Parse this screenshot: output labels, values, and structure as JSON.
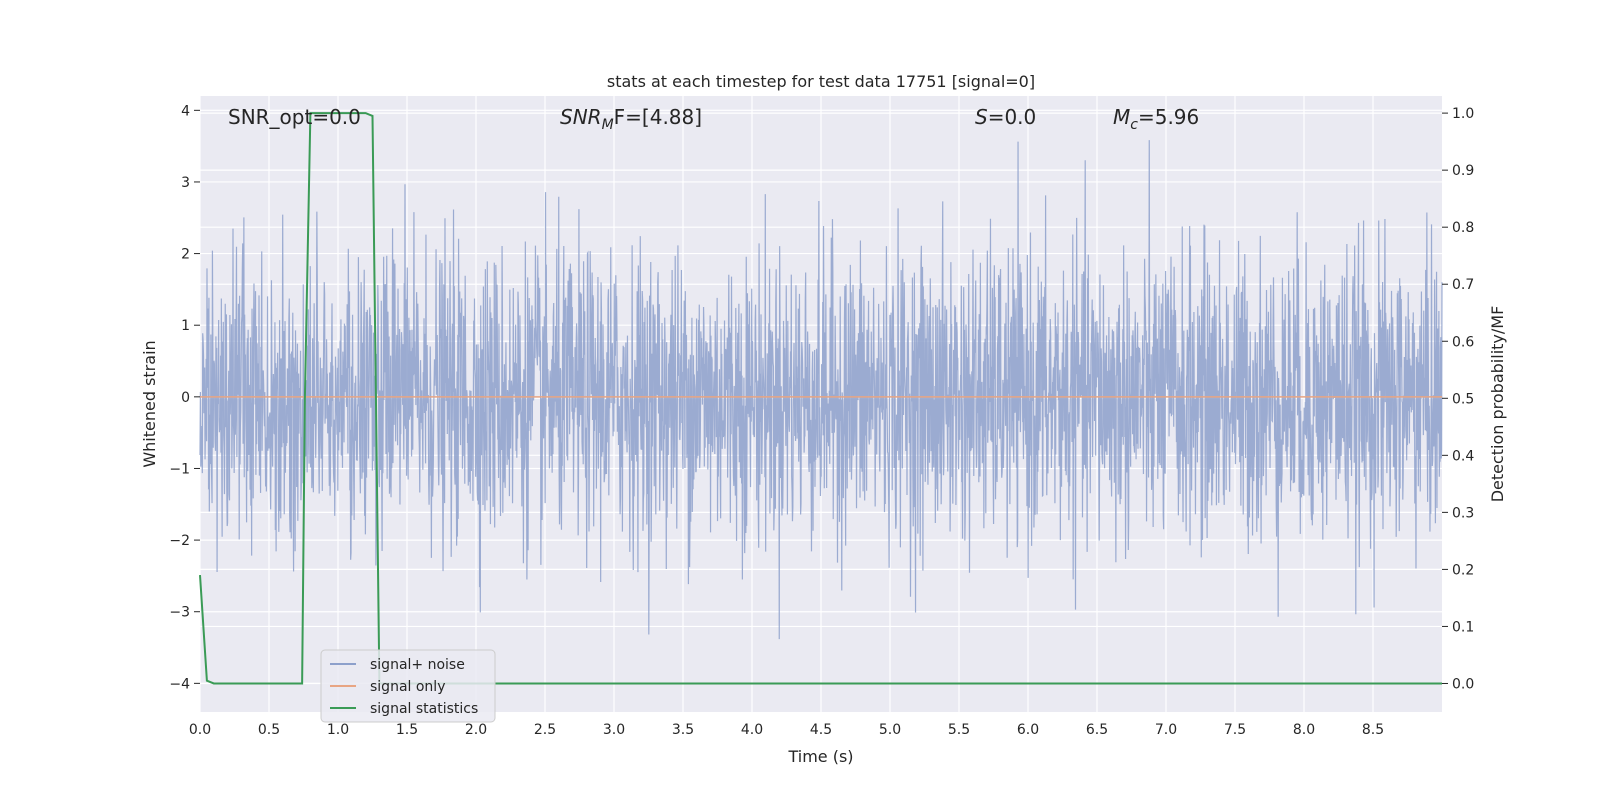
{
  "chart_data": {
    "type": "line",
    "title": "stats at each timestep for test data 17751 [signal=0]",
    "xlabel": "Time (s)",
    "ylabel_left": "Whitened strain",
    "ylabel_right": "Detection probability/MF",
    "xlim": [
      0,
      9
    ],
    "ylim_left": [
      -4.4,
      4.2
    ],
    "ylim_right": [
      -0.05,
      1.03
    ],
    "x_ticks": [
      "0.0",
      "0.5",
      "1.0",
      "1.5",
      "2.0",
      "2.5",
      "3.0",
      "3.5",
      "4.0",
      "4.5",
      "5.0",
      "5.5",
      "6.0",
      "6.5",
      "7.0",
      "7.5",
      "8.0",
      "8.5"
    ],
    "y_left_ticks": [
      "4",
      "3",
      "2",
      "1",
      "0",
      "−1",
      "−2",
      "−3",
      "−4"
    ],
    "y_right_ticks": [
      "1.0",
      "0.9",
      "0.8",
      "0.7",
      "0.6",
      "0.5",
      "0.4",
      "0.3",
      "0.2",
      "0.1",
      "0.0"
    ],
    "grid": true,
    "annotations": [
      {
        "name": "snr-opt-annotation",
        "base": "SNR_opt=0.0",
        "sub": "",
        "rest": "",
        "italic": false
      },
      {
        "name": "snr-mf-annotation",
        "base": "SNR",
        "sub": "M",
        "rest": "F=[4.88]",
        "italic": true
      },
      {
        "name": "s-annotation",
        "base": "S",
        "sub": "",
        "rest": "=0.0",
        "italic": true
      },
      {
        "name": "mc-annotation",
        "base": "M",
        "sub": "c",
        "rest": "=5.96",
        "italic": true
      }
    ],
    "legend": {
      "position": "lower-left",
      "entries": [
        "signal+ noise",
        "signal only",
        "signal statistics"
      ]
    },
    "series": [
      {
        "name": "signal+ noise",
        "axis": "left",
        "color": "#8da0cb",
        "style": "whitened noise time series, amplitude mostly within ±2, peaks reaching about ±3.7"
      },
      {
        "name": "signal only",
        "axis": "left",
        "color": "#e8a583",
        "values_constant": 0
      },
      {
        "name": "signal statistics",
        "axis": "right",
        "color": "#3a9b56",
        "x": [
          0.0,
          0.05,
          0.1,
          0.15,
          0.74,
          0.76,
          0.8,
          1.0,
          1.2,
          1.25,
          1.3,
          1.4,
          9.0
        ],
        "y": [
          0.19,
          0.005,
          0.0,
          0.0,
          0.0,
          0.5,
          1.0,
          1.0,
          1.0,
          0.995,
          0.0,
          0.0,
          0.0
        ]
      }
    ]
  }
}
